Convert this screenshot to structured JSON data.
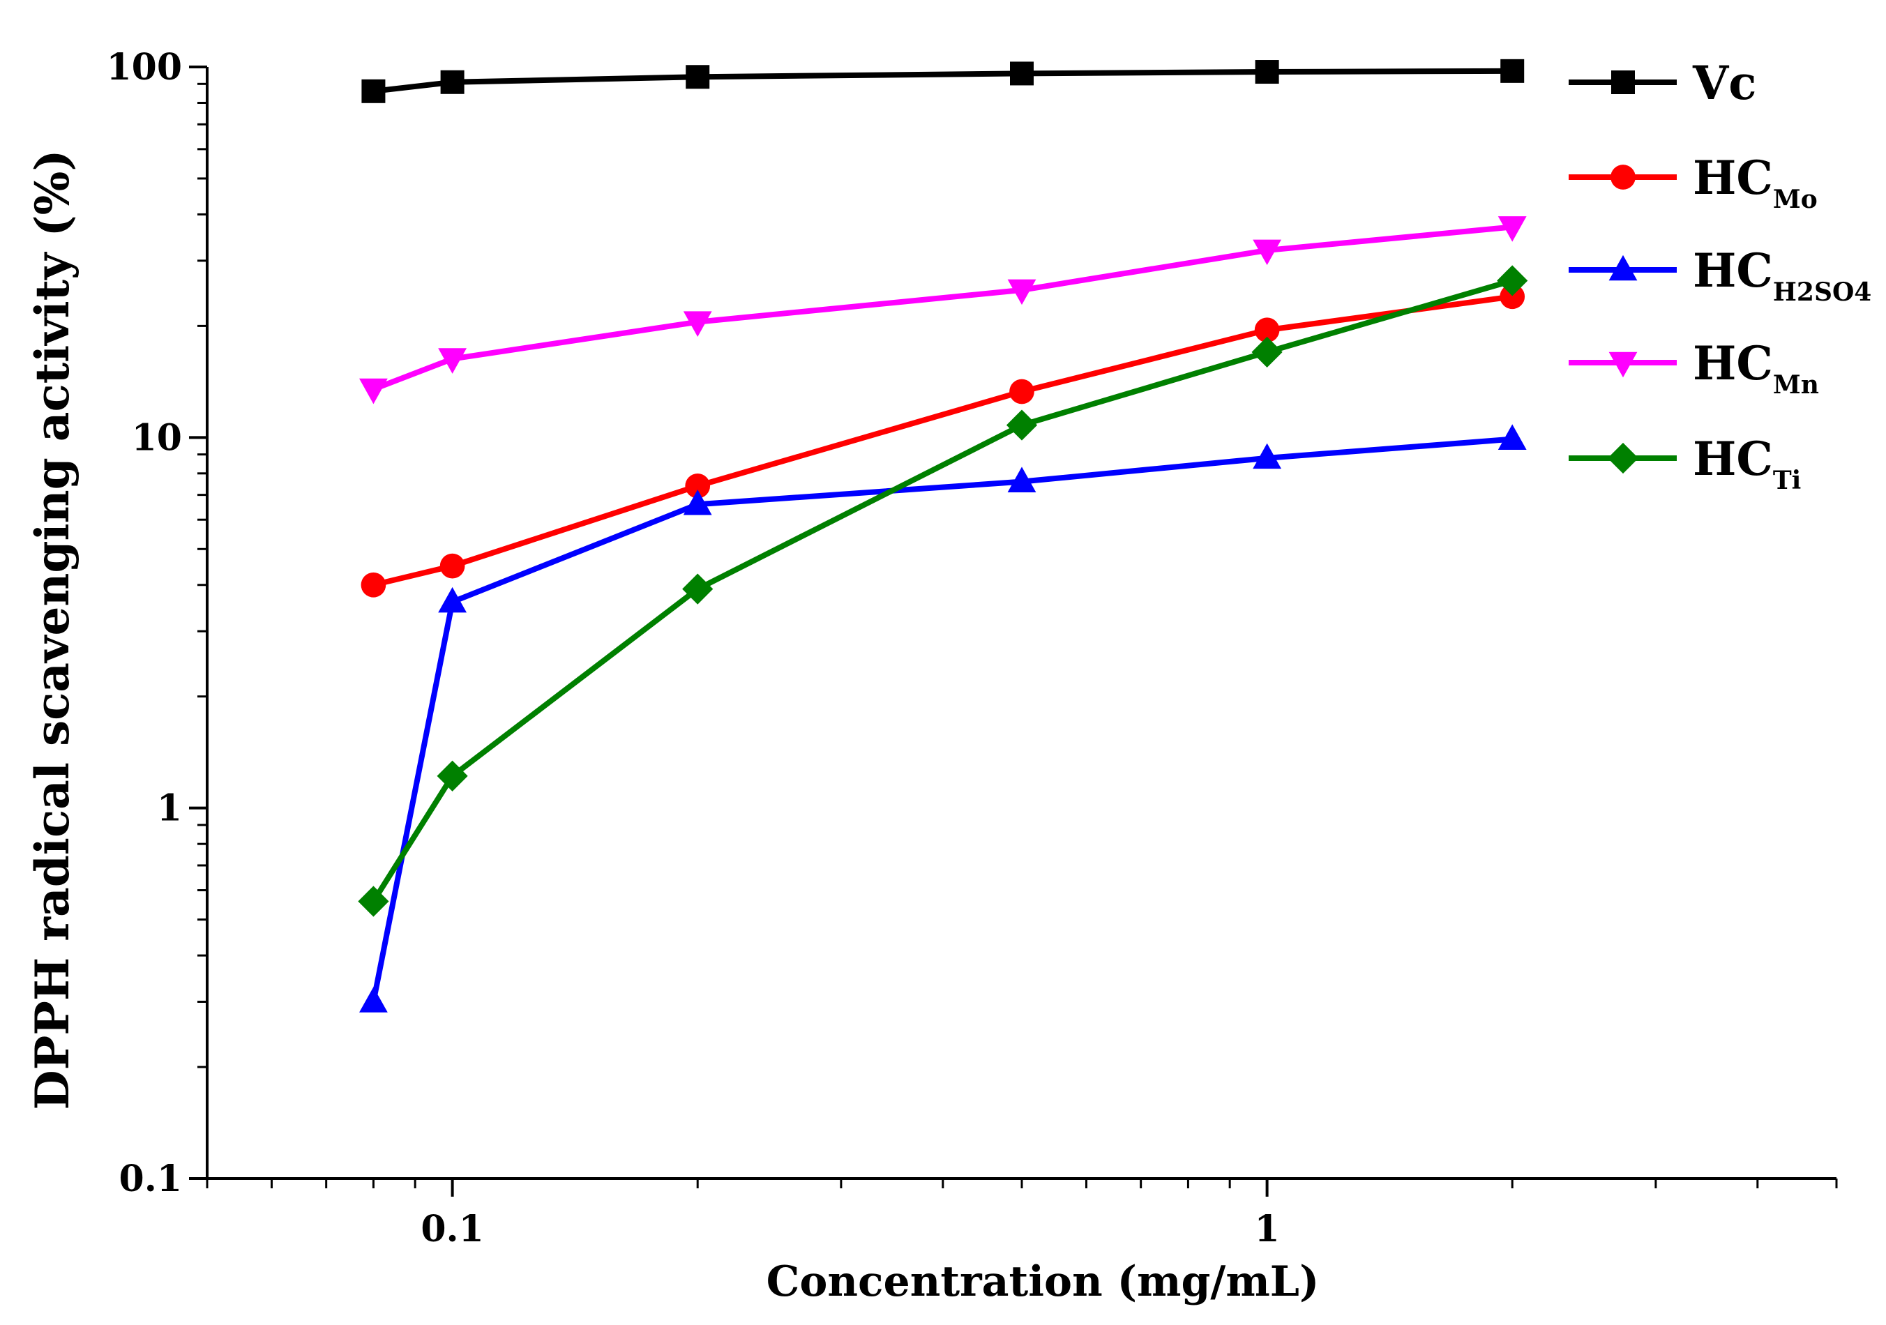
{
  "chart_data": {
    "type": "line",
    "xscale": "log",
    "yscale": "log",
    "xlabel": "Concentration (mg/mL)",
    "ylabel": "DPPH radical scavenging activity (%)",
    "xlim": [
      0.05,
      5
    ],
    "ylim": [
      0.1,
      100
    ],
    "xticks": [
      {
        "value": 0.1,
        "label": "0.1"
      },
      {
        "value": 1,
        "label": "1"
      }
    ],
    "yticks": [
      {
        "value": 0.1,
        "label": "0.1"
      },
      {
        "value": 1,
        "label": "1"
      },
      {
        "value": 10,
        "label": "10"
      },
      {
        "value": 100,
        "label": "100"
      }
    ],
    "x": [
      0.08,
      0.1,
      0.2,
      0.5,
      1,
      2
    ],
    "legend_position": "top-right",
    "series": [
      {
        "name": "Vc",
        "sub": "",
        "color": "#000000",
        "marker": "square",
        "values": [
          86,
          91,
          94,
          96,
          97,
          97.5
        ]
      },
      {
        "name": "HC",
        "sub": "Mo",
        "color": "#ff0000",
        "marker": "circle",
        "values": [
          4.0,
          4.5,
          7.4,
          13.3,
          19.5,
          24
        ]
      },
      {
        "name": "HC",
        "sub": "H2SO4",
        "color": "#0000ff",
        "marker": "triangle-up",
        "values": [
          0.3,
          3.6,
          6.6,
          7.6,
          8.8,
          9.9
        ]
      },
      {
        "name": "HC",
        "sub": "Mn",
        "color": "#ff00ff",
        "marker": "triangle-down",
        "values": [
          13.5,
          16.3,
          20.5,
          25,
          32,
          37
        ]
      },
      {
        "name": "HC",
        "sub": "Ti",
        "color": "#008000",
        "marker": "diamond",
        "values": [
          0.56,
          1.22,
          3.9,
          10.8,
          17,
          26.5
        ]
      }
    ]
  }
}
